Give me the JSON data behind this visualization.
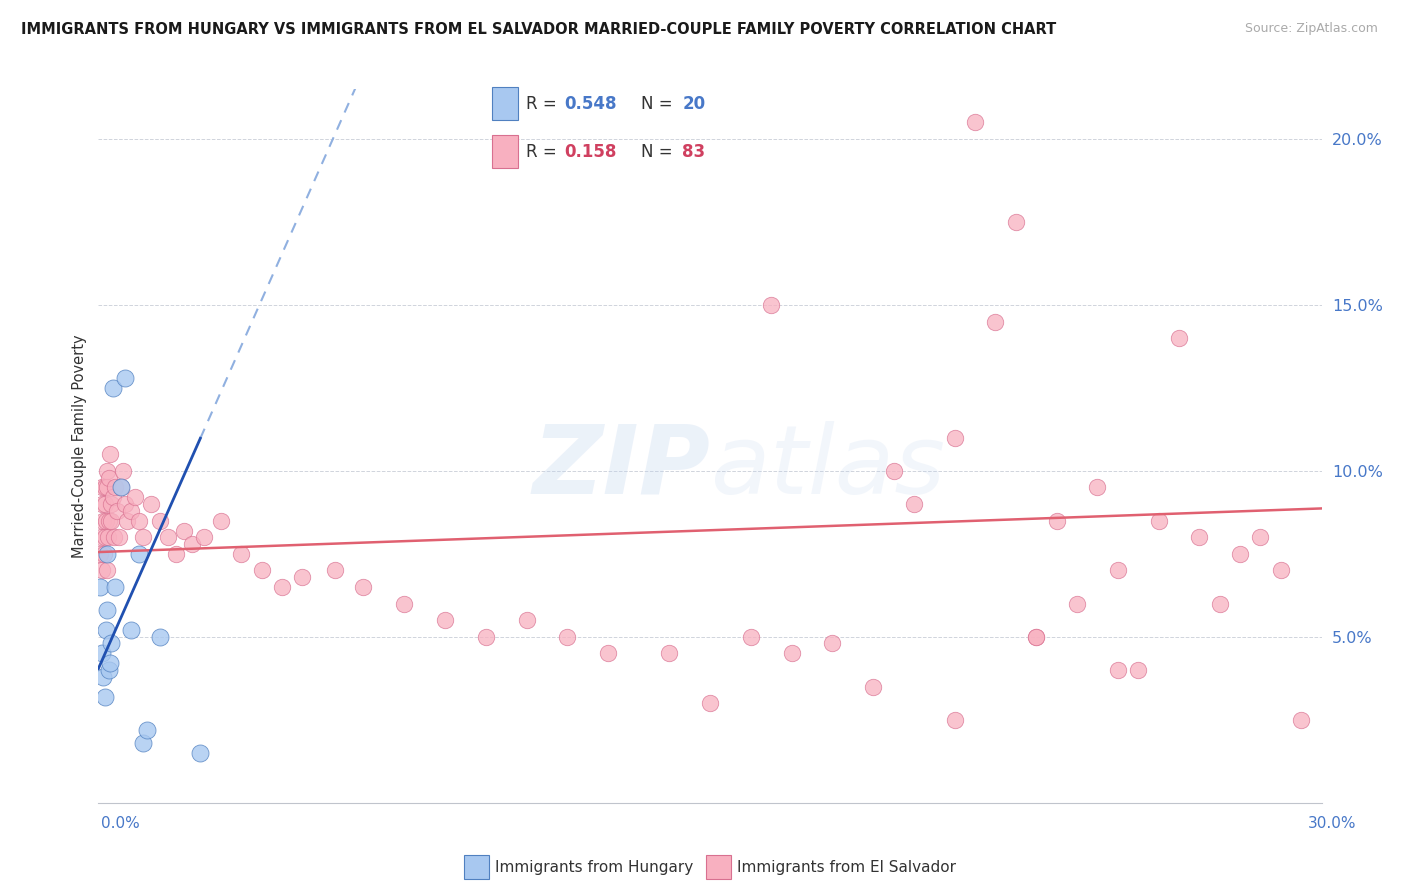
{
  "title": "IMMIGRANTS FROM HUNGARY VS IMMIGRANTS FROM EL SALVADOR MARRIED-COUPLE FAMILY POVERTY CORRELATION CHART",
  "source": "Source: ZipAtlas.com",
  "ylabel": "Married-Couple Family Poverty",
  "xlim": [
    0.0,
    30.0
  ],
  "ylim": [
    0.0,
    21.5
  ],
  "color_hungary": "#a8c8f0",
  "color_elsalvador": "#f8b0c0",
  "color_hungary_line": "#2050b0",
  "color_elsalvador_line": "#e06070",
  "color_hungary_dash": "#90b0e0",
  "R_hungary": 0.548,
  "N_hungary": 20,
  "R_elsalvador": 0.158,
  "N_elsalvador": 83,
  "hungary_x": [
    0.05,
    0.1,
    0.12,
    0.15,
    0.18,
    0.2,
    0.22,
    0.25,
    0.28,
    0.32,
    0.35,
    0.4,
    0.55,
    0.65,
    0.8,
    1.0,
    1.1,
    1.2,
    1.5,
    2.5
  ],
  "hungary_y": [
    6.5,
    4.5,
    3.8,
    3.2,
    5.2,
    5.8,
    7.5,
    4.0,
    4.2,
    4.8,
    12.5,
    6.5,
    9.5,
    12.8,
    5.2,
    7.5,
    1.8,
    2.2,
    5.0,
    1.5
  ],
  "elsalvador_x": [
    0.05,
    0.07,
    0.08,
    0.1,
    0.1,
    0.12,
    0.13,
    0.15,
    0.15,
    0.17,
    0.18,
    0.2,
    0.2,
    0.22,
    0.23,
    0.25,
    0.25,
    0.28,
    0.3,
    0.32,
    0.35,
    0.38,
    0.4,
    0.45,
    0.5,
    0.55,
    0.6,
    0.65,
    0.7,
    0.8,
    0.9,
    1.0,
    1.1,
    1.3,
    1.5,
    1.7,
    1.9,
    2.1,
    2.3,
    2.6,
    3.0,
    3.5,
    4.0,
    4.5,
    5.0,
    5.8,
    6.5,
    7.5,
    8.5,
    9.5,
    10.5,
    11.5,
    12.5,
    14.0,
    16.0,
    18.0,
    20.0,
    21.5,
    22.5,
    23.5,
    24.5,
    25.5,
    26.5,
    27.5,
    28.5,
    29.5,
    15.0,
    17.0,
    19.0,
    22.0,
    24.0,
    26.0,
    28.0,
    21.0,
    23.0,
    25.0,
    27.0,
    29.0,
    16.5,
    19.5,
    21.0,
    23.0,
    25.0
  ],
  "elsalvador_y": [
    7.5,
    8.0,
    9.5,
    9.0,
    7.0,
    8.5,
    7.5,
    9.5,
    8.0,
    9.0,
    8.5,
    10.0,
    7.0,
    9.5,
    8.0,
    8.5,
    9.8,
    10.5,
    9.0,
    8.5,
    9.2,
    8.0,
    9.5,
    8.8,
    8.0,
    9.5,
    10.0,
    9.0,
    8.5,
    8.8,
    9.2,
    8.5,
    8.0,
    9.0,
    8.5,
    8.0,
    7.5,
    8.2,
    7.8,
    8.0,
    8.5,
    7.5,
    7.0,
    6.5,
    6.8,
    7.0,
    6.5,
    6.0,
    5.5,
    5.0,
    5.5,
    5.0,
    4.5,
    4.5,
    5.0,
    4.8,
    9.0,
    20.5,
    17.5,
    8.5,
    9.5,
    4.0,
    14.0,
    6.0,
    8.0,
    2.5,
    3.0,
    4.5,
    3.5,
    14.5,
    6.0,
    8.5,
    7.5,
    11.0,
    5.0,
    7.0,
    8.0,
    7.0,
    15.0,
    10.0,
    2.5,
    5.0,
    4.0
  ]
}
